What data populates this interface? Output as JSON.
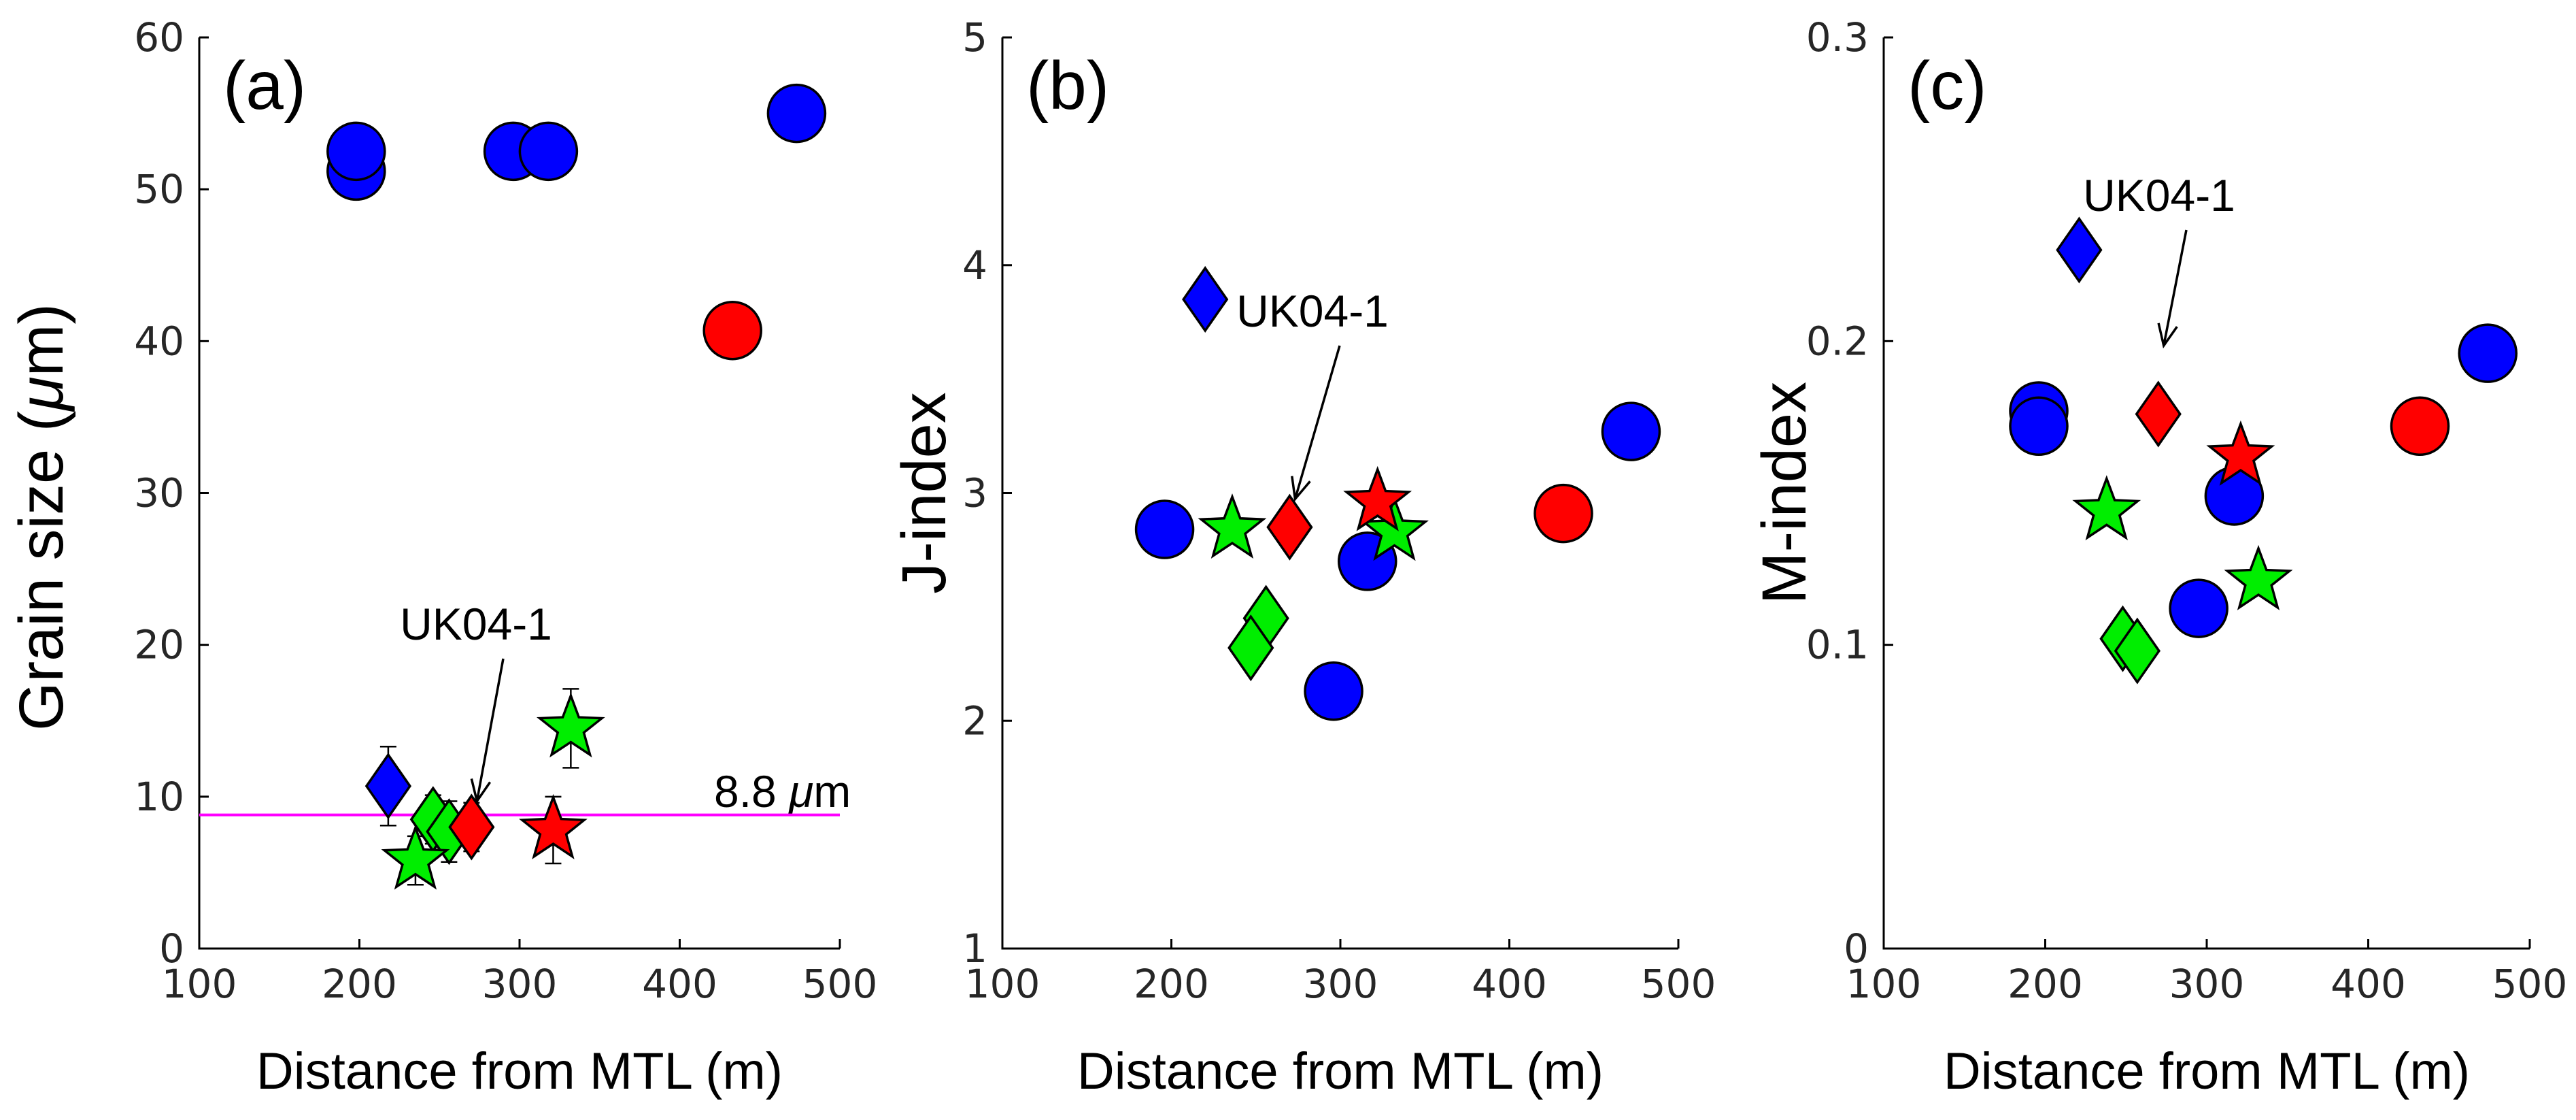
{
  "colors": {
    "blue": "#0000ff",
    "red": "#ff0000",
    "green": "#00ee00",
    "magenta": "#ff00ff"
  },
  "chart_data": [
    {
      "type": "scatter",
      "panel": "(a)",
      "xlabel": "Distance from MTL (m)",
      "ylabel": "Grain size (",
      "ylabel_mu": "μ",
      "ylabel_end": "m)",
      "xlim": [
        100,
        500
      ],
      "ylim": [
        0,
        60
      ],
      "xticks": [
        100,
        200,
        300,
        400,
        500
      ],
      "yticks": [
        0,
        10,
        20,
        30,
        40,
        50,
        60
      ],
      "grid": false,
      "reference_line": {
        "y": 8.8,
        "label_value": "8.8 ",
        "label_mu": "μ",
        "label_unit": "m",
        "color": "#ff00ff"
      },
      "annotation": {
        "text": "UK04-1",
        "target": [
          270,
          8
        ]
      },
      "points": [
        {
          "x": 198,
          "y": 51.2,
          "err": 1.6,
          "marker": "circle",
          "color": "#0000ff"
        },
        {
          "x": 198,
          "y": 52.5,
          "err": 1.6,
          "marker": "circle",
          "color": "#0000ff"
        },
        {
          "x": 296,
          "y": 52.5,
          "err": 1.6,
          "marker": "circle",
          "color": "#0000ff"
        },
        {
          "x": 318,
          "y": 52.5,
          "err": 1.6,
          "marker": "circle",
          "color": "#0000ff"
        },
        {
          "x": 473,
          "y": 55.0,
          "err": 1.8,
          "marker": "circle",
          "color": "#0000ff"
        },
        {
          "x": 433,
          "y": 40.7,
          "err": 1.5,
          "marker": "circle",
          "color": "#ff0000"
        },
        {
          "x": 218,
          "y": 10.7,
          "err": 2.6,
          "marker": "diamond",
          "color": "#0000ff"
        },
        {
          "x": 246,
          "y": 8.5,
          "err": 1.6,
          "marker": "diamond",
          "color": "#00ee00"
        },
        {
          "x": 256,
          "y": 7.7,
          "err": 2.0,
          "marker": "diamond",
          "color": "#00ee00"
        },
        {
          "x": 270,
          "y": 8.0,
          "err": 1.6,
          "marker": "diamond",
          "color": "#ff0000"
        },
        {
          "x": 235,
          "y": 5.8,
          "err": 1.6,
          "marker": "star",
          "color": "#00ee00"
        },
        {
          "x": 332,
          "y": 14.5,
          "err": 2.6,
          "marker": "star",
          "color": "#00ee00"
        },
        {
          "x": 321,
          "y": 7.8,
          "err": 2.2,
          "marker": "star",
          "color": "#ff0000"
        }
      ]
    },
    {
      "type": "scatter",
      "panel": "(b)",
      "xlabel": "Distance from MTL (m)",
      "ylabel": "J-index",
      "xlim": [
        100,
        500
      ],
      "ylim": [
        1,
        5
      ],
      "xticks": [
        100,
        200,
        300,
        400,
        500
      ],
      "yticks": [
        1,
        2,
        3,
        4,
        5
      ],
      "grid": false,
      "annotation": {
        "text": "UK04-1",
        "target": [
          270,
          2.86
        ]
      },
      "points": [
        {
          "x": 196,
          "y": 2.84,
          "marker": "circle",
          "color": "#0000ff"
        },
        {
          "x": 316,
          "y": 2.7,
          "marker": "circle",
          "color": "#0000ff"
        },
        {
          "x": 296,
          "y": 2.13,
          "marker": "circle",
          "color": "#0000ff"
        },
        {
          "x": 472,
          "y": 3.27,
          "marker": "circle",
          "color": "#0000ff"
        },
        {
          "x": 432,
          "y": 2.91,
          "marker": "circle",
          "color": "#ff0000"
        },
        {
          "x": 220,
          "y": 3.85,
          "marker": "diamond",
          "color": "#0000ff"
        },
        {
          "x": 256,
          "y": 2.45,
          "marker": "diamond",
          "color": "#00ee00"
        },
        {
          "x": 247,
          "y": 2.32,
          "marker": "diamond",
          "color": "#00ee00"
        },
        {
          "x": 270,
          "y": 2.85,
          "marker": "diamond",
          "color": "#ff0000"
        },
        {
          "x": 236,
          "y": 2.84,
          "marker": "star",
          "color": "#00ee00"
        },
        {
          "x": 332,
          "y": 2.83,
          "marker": "star",
          "color": "#00ee00"
        },
        {
          "x": 322,
          "y": 2.96,
          "marker": "star",
          "color": "#ff0000"
        }
      ]
    },
    {
      "type": "scatter",
      "panel": "(c)",
      "xlabel": "Distance from MTL (m)",
      "ylabel": "M-index",
      "xlim": [
        100,
        500
      ],
      "ylim": [
        0,
        0.3
      ],
      "xticks": [
        100,
        200,
        300,
        400,
        500
      ],
      "yticks": [
        0,
        0.1,
        0.2,
        0.3
      ],
      "grid": false,
      "annotation": {
        "text": "UK04-1",
        "target": [
          270,
          0.19
        ]
      },
      "points": [
        {
          "x": 196,
          "y": 0.177,
          "marker": "circle",
          "color": "#0000ff"
        },
        {
          "x": 196,
          "y": 0.172,
          "marker": "circle",
          "color": "#0000ff"
        },
        {
          "x": 317,
          "y": 0.149,
          "marker": "circle",
          "color": "#0000ff"
        },
        {
          "x": 295,
          "y": 0.112,
          "marker": "circle",
          "color": "#0000ff"
        },
        {
          "x": 474,
          "y": 0.196,
          "marker": "circle",
          "color": "#0000ff"
        },
        {
          "x": 432,
          "y": 0.172,
          "marker": "circle",
          "color": "#ff0000"
        },
        {
          "x": 221,
          "y": 0.23,
          "marker": "diamond",
          "color": "#0000ff"
        },
        {
          "x": 248,
          "y": 0.102,
          "marker": "diamond",
          "color": "#00ee00"
        },
        {
          "x": 257,
          "y": 0.098,
          "marker": "diamond",
          "color": "#00ee00"
        },
        {
          "x": 270,
          "y": 0.176,
          "marker": "diamond",
          "color": "#ff0000"
        },
        {
          "x": 238,
          "y": 0.144,
          "marker": "star",
          "color": "#00ee00"
        },
        {
          "x": 332,
          "y": 0.121,
          "marker": "star",
          "color": "#00ee00"
        },
        {
          "x": 321,
          "y": 0.162,
          "marker": "star",
          "color": "#ff0000"
        }
      ]
    }
  ]
}
